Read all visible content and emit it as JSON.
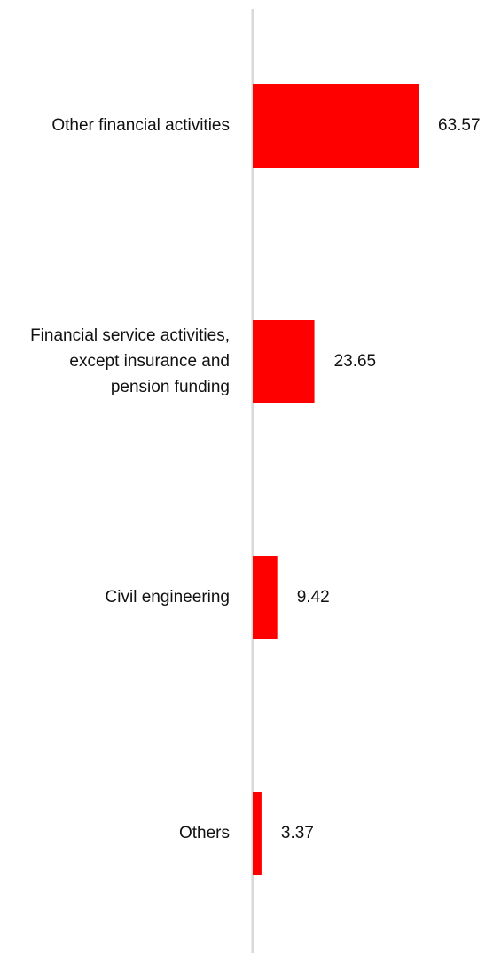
{
  "chart_data": {
    "type": "bar",
    "orientation": "horizontal",
    "categories": [
      [
        "Other financial activities"
      ],
      [
        "Financial service activities,",
        "except insurance and",
        "pension funding"
      ],
      [
        "Civil engineering"
      ],
      [
        "Others"
      ]
    ],
    "values": [
      63.57,
      23.65,
      9.42,
      3.37
    ],
    "value_labels": [
      "63.57",
      "23.65",
      "9.42",
      "3.37"
    ],
    "title": "",
    "xlabel": "",
    "ylabel": "",
    "xlim": [
      0,
      100
    ],
    "grid": false,
    "legend": "none",
    "colors": {
      "bar": "#ff0000",
      "axis": "#d9d9d9",
      "text": "#111111"
    }
  }
}
